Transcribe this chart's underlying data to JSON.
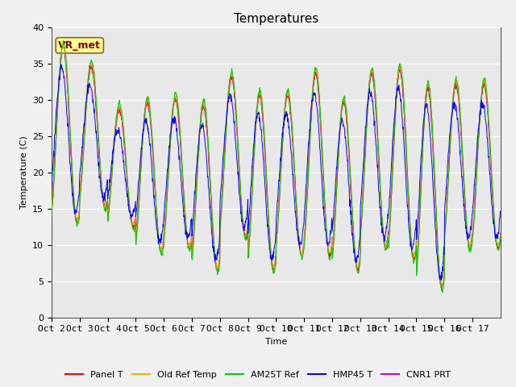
{
  "title": "Temperatures",
  "xlabel": "Time",
  "ylabel": "Temperature (C)",
  "ylim": [
    0,
    40
  ],
  "annotation_text": "VR_met",
  "annotation_color": "#8B0000",
  "annotation_bg": "#FFFF99",
  "fig_facecolor": "#F0F0F0",
  "ax_facecolor": "#E8E8E8",
  "series_colors": {
    "Panel T": "#FF0000",
    "Old Ref Temp": "#FFA500",
    "AM25T Ref": "#00CC00",
    "HMP45 T": "#0000FF",
    "CNR1 PRT": "#CC00CC"
  },
  "xtick_labels": [
    "Oct 2",
    "Oct 3",
    "Oct 4",
    "Oct 5",
    "Oct 6",
    "Oct 7",
    "Oct 8",
    "Oct 9",
    "Oct 10",
    "Oct 11",
    "Oct 12",
    "Oct 13",
    "Oct 14",
    "Oct 15",
    "Oct 16",
    "Oct 17"
  ],
  "ytick_labels": [
    "0",
    "5",
    "10",
    "15",
    "20",
    "25",
    "30",
    "35",
    "40"
  ],
  "ytick_values": [
    0,
    5,
    10,
    15,
    20,
    25,
    30,
    35,
    40
  ],
  "n_days": 16,
  "pts_per_day": 96,
  "title_fontsize": 11,
  "axis_fontsize": 8,
  "tick_fontsize": 8,
  "legend_fontsize": 8
}
